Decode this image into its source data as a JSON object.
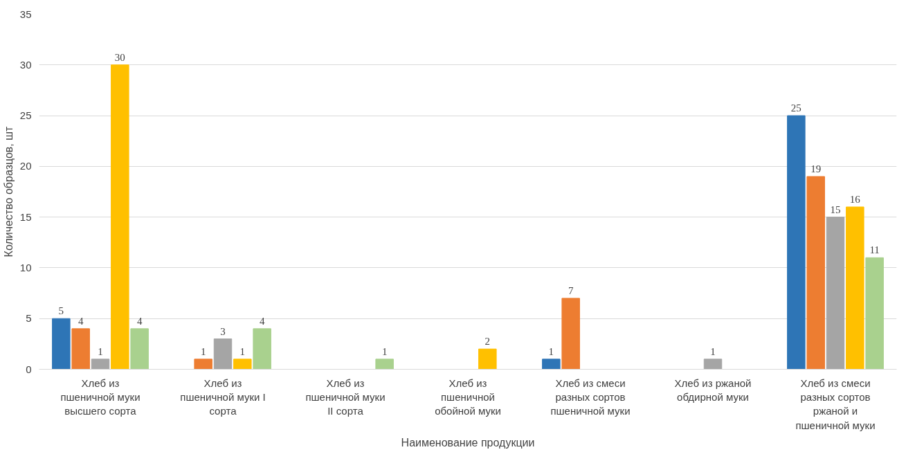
{
  "chart_data": {
    "type": "bar",
    "xlabel": "Наименование продукции",
    "ylabel": "Количество образцов, шт",
    "categories": [
      "Хлеб из пшеничной муки высшего сорта",
      "Хлеб из пшеничной муки I сорта",
      "Хлеб из пшеничной муки II сорта",
      "Хлеб из пшеничной обойной муки",
      "Хлеб из смеси разных сортов пшеничной муки",
      "Хлеб из ржаной обдирной муки",
      "Хлеб из смеси разных сортов ржаной и пшеничной муки"
    ],
    "series": [
      {
        "color": "#2e75b6",
        "values": [
          5,
          null,
          null,
          null,
          1,
          null,
          25
        ]
      },
      {
        "color": "#ed7d31",
        "values": [
          4,
          1,
          null,
          null,
          7,
          null,
          19
        ]
      },
      {
        "color": "#a5a5a5",
        "values": [
          1,
          3,
          null,
          null,
          null,
          1,
          15
        ]
      },
      {
        "color": "#ffc000",
        "values": [
          30,
          1,
          null,
          2,
          null,
          null,
          16
        ]
      },
      {
        "color": "#a9d18e",
        "values": [
          4,
          4,
          1,
          null,
          null,
          null,
          11
        ]
      }
    ],
    "ylim": [
      0,
      35
    ],
    "yticks": [
      0,
      5,
      10,
      15,
      20,
      25,
      30,
      35
    ],
    "grid": "y",
    "data_labels": true
  }
}
